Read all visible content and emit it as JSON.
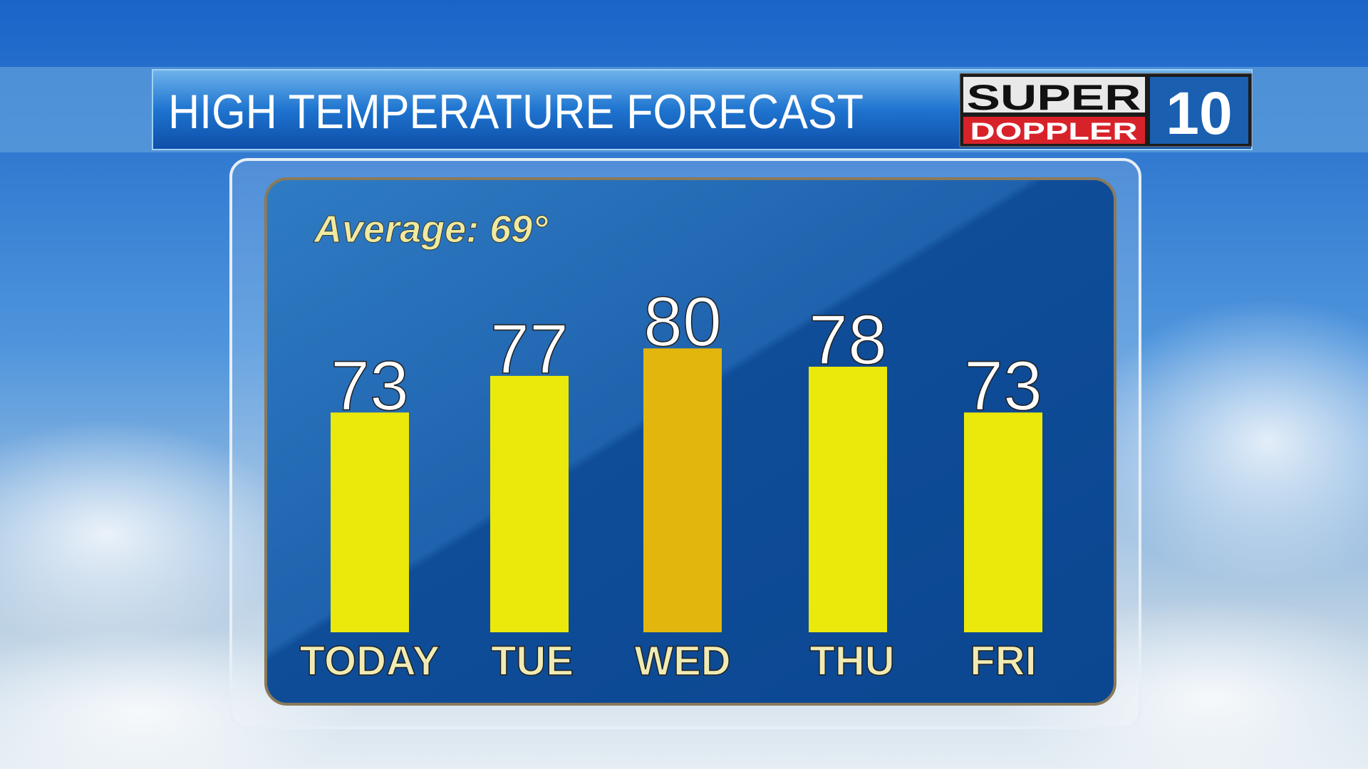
{
  "chart_data": {
    "type": "bar",
    "title": "HIGH TEMPERATURE FORECAST",
    "annotation": "Average: 69°",
    "logo": {
      "top": "SUPER",
      "bottom": "DOPPLER",
      "channel": "10"
    },
    "categories": [
      "TODAY",
      "TUE",
      "WED",
      "THU",
      "FRI"
    ],
    "values": [
      73,
      77,
      80,
      78,
      73
    ],
    "colors": [
      "#ebe90b",
      "#ebe90b",
      "#e3b60d",
      "#ebe90b",
      "#ebe90b"
    ],
    "ylim": [
      49,
      85
    ]
  }
}
